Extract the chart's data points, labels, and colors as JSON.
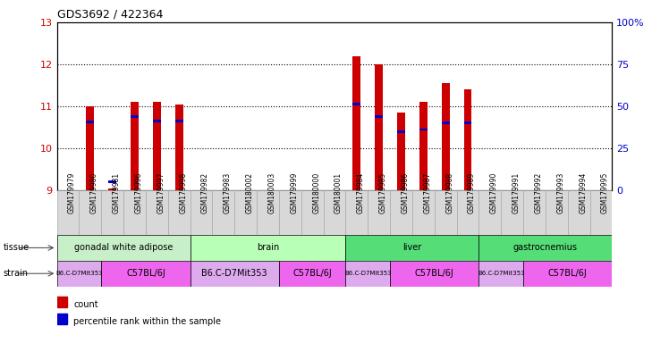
{
  "title": "GDS3692 / 422364",
  "samples": [
    "GSM179979",
    "GSM179980",
    "GSM179981",
    "GSM179996",
    "GSM179997",
    "GSM179998",
    "GSM179982",
    "GSM179983",
    "GSM180002",
    "GSM180003",
    "GSM179999",
    "GSM180000",
    "GSM180001",
    "GSM179984",
    "GSM179985",
    "GSM179986",
    "GSM179987",
    "GSM179988",
    "GSM179989",
    "GSM179990",
    "GSM179991",
    "GSM179992",
    "GSM179993",
    "GSM179994",
    "GSM179995"
  ],
  "count_values": [
    9.0,
    11.0,
    9.05,
    11.1,
    11.1,
    11.05,
    9.0,
    9.0,
    9.0,
    9.0,
    9.0,
    9.0,
    9.0,
    12.2,
    12.0,
    10.85,
    11.1,
    11.55,
    11.4,
    9.0,
    9.0,
    9.0,
    9.0,
    9.0,
    9.0
  ],
  "percentile_values": [
    null,
    10.63,
    9.2,
    10.75,
    10.65,
    10.65,
    null,
    null,
    null,
    null,
    null,
    null,
    null,
    11.05,
    10.75,
    10.4,
    10.45,
    10.6,
    10.6,
    null,
    null,
    null,
    null,
    null,
    null
  ],
  "ymin": 9.0,
  "ymax": 13.0,
  "yticks": [
    9,
    10,
    11,
    12,
    13
  ],
  "y2min": 0,
  "y2max": 100,
  "y2ticks": [
    0,
    25,
    50,
    75,
    100
  ],
  "y2ticklabels": [
    "0",
    "25",
    "50",
    "75",
    "100%"
  ],
  "tissues": [
    {
      "label": "gonadal white adipose",
      "start": 0,
      "end": 6,
      "color": "#c8f0c8"
    },
    {
      "label": "brain",
      "start": 6,
      "end": 13,
      "color": "#ccffcc"
    },
    {
      "label": "liver",
      "start": 13,
      "end": 19,
      "color": "#55dd77"
    },
    {
      "label": "gastrocnemius",
      "start": 19,
      "end": 25,
      "color": "#55dd77"
    }
  ],
  "strains": [
    {
      "label": "B6.C-D7Mit353",
      "start": 0,
      "end": 2,
      "color": "#ddaaee"
    },
    {
      "label": "C57BL/6J",
      "start": 2,
      "end": 6,
      "color": "#ee66ee"
    },
    {
      "label": "B6.C-D7Mit353",
      "start": 6,
      "end": 10,
      "color": "#ddaaee"
    },
    {
      "label": "C57BL/6J",
      "start": 10,
      "end": 13,
      "color": "#ee66ee"
    },
    {
      "label": "B6.C-D7Mit353",
      "start": 13,
      "end": 15,
      "color": "#ddaaee"
    },
    {
      "label": "C57BL/6J",
      "start": 15,
      "end": 19,
      "color": "#ee66ee"
    },
    {
      "label": "B6.C-D7Mit353",
      "start": 19,
      "end": 21,
      "color": "#ddaaee"
    },
    {
      "label": "C57BL/6J",
      "start": 21,
      "end": 25,
      "color": "#ee66ee"
    }
  ],
  "bar_color": "#cc0000",
  "percentile_color": "#0000cc",
  "grid_color": "#000000",
  "tick_bg_color": "#d8d8d8"
}
